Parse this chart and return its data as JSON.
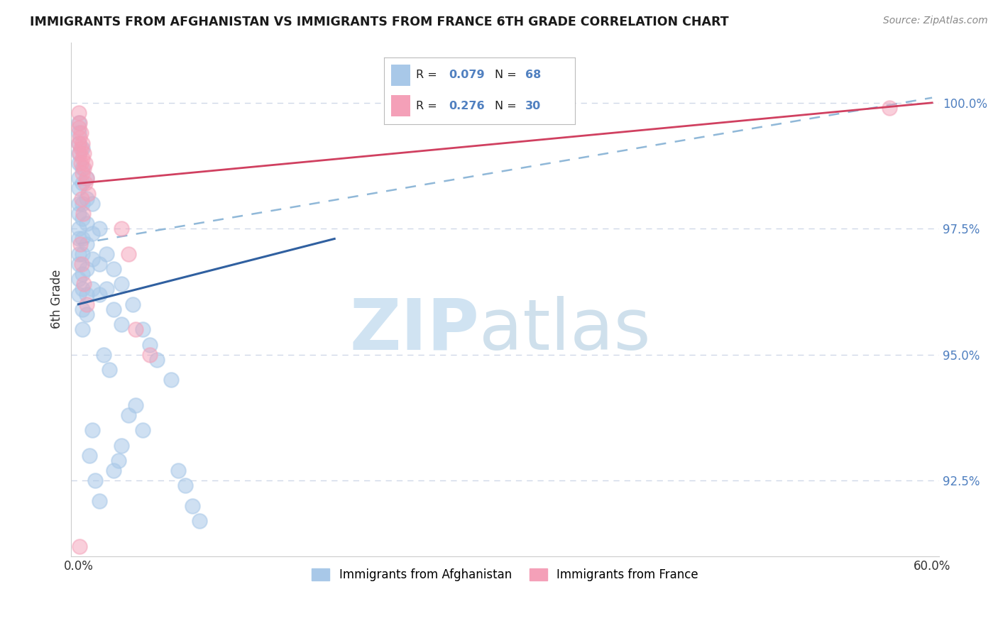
{
  "title": "IMMIGRANTS FROM AFGHANISTAN VS IMMIGRANTS FROM FRANCE 6TH GRADE CORRELATION CHART",
  "source": "Source: ZipAtlas.com",
  "ylabel": "6th Grade",
  "xlim": [
    0.0,
    60.0
  ],
  "ylim": [
    91.0,
    101.2
  ],
  "y_tick_vals": [
    92.5,
    95.0,
    97.5,
    100.0
  ],
  "y_tick_labels": [
    "92.5%",
    "95.0%",
    "97.5%",
    "100.0%"
  ],
  "x_tick_vals": [
    0,
    60
  ],
  "x_tick_labels": [
    "0.0%",
    "60.0%"
  ],
  "legend_label1": "Immigrants from Afghanistan",
  "legend_label2": "Immigrants from France",
  "blue_scatter_color": "#a8c8e8",
  "pink_scatter_color": "#f4a0b8",
  "blue_line_color": "#3060a0",
  "pink_line_color": "#d04060",
  "dashed_line_color": "#90b8d8",
  "tick_color": "#5080c0",
  "grid_color": "#d0d8e8",
  "watermark_zip_color": "#c8dff0",
  "watermark_atlas_color": "#b0cce0",
  "blue_line_x": [
    0.0,
    18.0
  ],
  "blue_line_y": [
    96.0,
    97.3
  ],
  "pink_line_x": [
    0.0,
    60.0
  ],
  "pink_line_y": [
    98.4,
    100.0
  ],
  "dashed_line_x": [
    0.0,
    60.0
  ],
  "dashed_line_y": [
    97.2,
    100.1
  ],
  "afg_points": [
    [
      0.05,
      99.6
    ],
    [
      0.05,
      99.4
    ],
    [
      0.05,
      99.2
    ],
    [
      0.05,
      99.0
    ],
    [
      0.05,
      98.8
    ],
    [
      0.05,
      98.5
    ],
    [
      0.05,
      98.3
    ],
    [
      0.05,
      98.0
    ],
    [
      0.05,
      97.8
    ],
    [
      0.05,
      97.5
    ],
    [
      0.05,
      97.3
    ],
    [
      0.05,
      97.0
    ],
    [
      0.05,
      96.8
    ],
    [
      0.05,
      96.5
    ],
    [
      0.05,
      96.2
    ],
    [
      0.3,
      99.1
    ],
    [
      0.3,
      98.7
    ],
    [
      0.3,
      98.4
    ],
    [
      0.3,
      98.0
    ],
    [
      0.3,
      97.7
    ],
    [
      0.3,
      97.3
    ],
    [
      0.3,
      97.0
    ],
    [
      0.3,
      96.6
    ],
    [
      0.3,
      96.3
    ],
    [
      0.3,
      95.9
    ],
    [
      0.3,
      95.5
    ],
    [
      0.6,
      98.5
    ],
    [
      0.6,
      98.1
    ],
    [
      0.6,
      97.6
    ],
    [
      0.6,
      97.2
    ],
    [
      0.6,
      96.7
    ],
    [
      0.6,
      96.2
    ],
    [
      0.6,
      95.8
    ],
    [
      1.0,
      98.0
    ],
    [
      1.0,
      97.4
    ],
    [
      1.0,
      96.9
    ],
    [
      1.0,
      96.3
    ],
    [
      1.5,
      97.5
    ],
    [
      1.5,
      96.8
    ],
    [
      1.5,
      96.2
    ],
    [
      2.0,
      97.0
    ],
    [
      2.0,
      96.3
    ],
    [
      2.5,
      96.7
    ],
    [
      2.5,
      95.9
    ],
    [
      3.0,
      96.4
    ],
    [
      3.0,
      95.6
    ],
    [
      3.8,
      96.0
    ],
    [
      4.5,
      95.5
    ],
    [
      5.0,
      95.2
    ],
    [
      5.5,
      94.9
    ],
    [
      6.5,
      94.5
    ],
    [
      1.8,
      95.0
    ],
    [
      2.2,
      94.7
    ],
    [
      7.0,
      92.7
    ],
    [
      7.5,
      92.4
    ],
    [
      8.0,
      92.0
    ],
    [
      8.5,
      91.7
    ],
    [
      4.0,
      94.0
    ],
    [
      4.5,
      93.5
    ],
    [
      3.5,
      93.8
    ],
    [
      3.0,
      93.2
    ],
    [
      2.8,
      92.9
    ],
    [
      1.2,
      92.5
    ],
    [
      1.5,
      92.1
    ],
    [
      2.5,
      92.7
    ],
    [
      0.8,
      93.0
    ],
    [
      1.0,
      93.5
    ]
  ],
  "fra_points": [
    [
      0.05,
      99.8
    ],
    [
      0.05,
      99.5
    ],
    [
      0.05,
      99.2
    ],
    [
      0.1,
      99.6
    ],
    [
      0.1,
      99.3
    ],
    [
      0.1,
      99.0
    ],
    [
      0.2,
      99.4
    ],
    [
      0.2,
      99.1
    ],
    [
      0.2,
      98.8
    ],
    [
      0.3,
      99.2
    ],
    [
      0.3,
      98.9
    ],
    [
      0.3,
      98.6
    ],
    [
      0.4,
      99.0
    ],
    [
      0.4,
      98.7
    ],
    [
      0.5,
      98.8
    ],
    [
      0.5,
      98.4
    ],
    [
      0.6,
      98.5
    ],
    [
      0.7,
      98.2
    ],
    [
      0.25,
      98.1
    ],
    [
      0.35,
      97.8
    ],
    [
      3.0,
      97.5
    ],
    [
      3.5,
      97.0
    ],
    [
      0.15,
      97.2
    ],
    [
      0.25,
      96.8
    ],
    [
      0.4,
      96.4
    ],
    [
      0.6,
      96.0
    ],
    [
      4.0,
      95.5
    ],
    [
      5.0,
      95.0
    ],
    [
      57.0,
      99.9
    ],
    [
      0.08,
      91.2
    ]
  ]
}
